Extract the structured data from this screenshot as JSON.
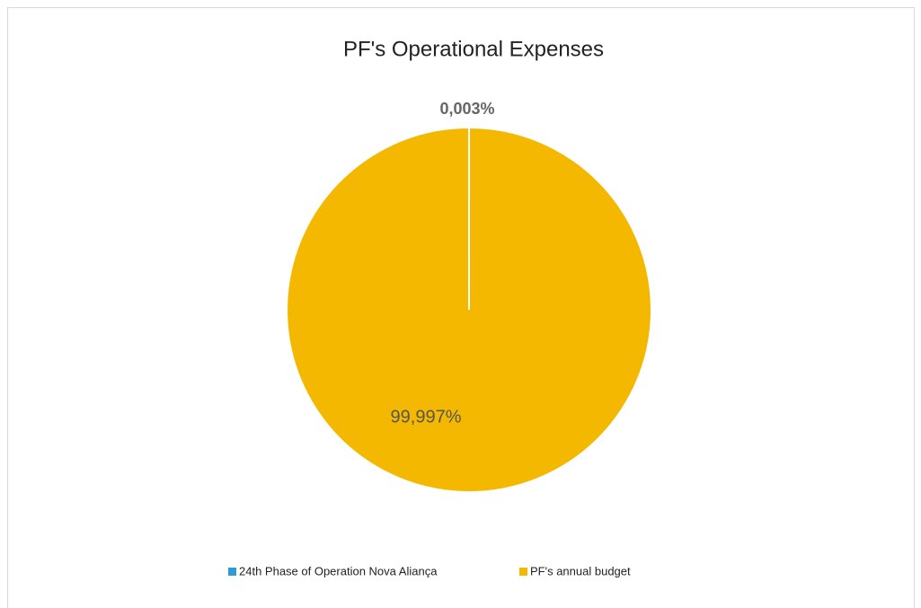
{
  "chart_data": {
    "type": "pie",
    "title": "PF's Operational Expenses",
    "categories": [
      "24th Phase of Operation Nova Aliança",
      "PF's annual budget"
    ],
    "values": [
      0.003,
      99.997
    ],
    "value_labels": [
      "0,003%",
      "99,997%"
    ],
    "colors": [
      "#2e9bd6",
      "#f5b800"
    ]
  }
}
